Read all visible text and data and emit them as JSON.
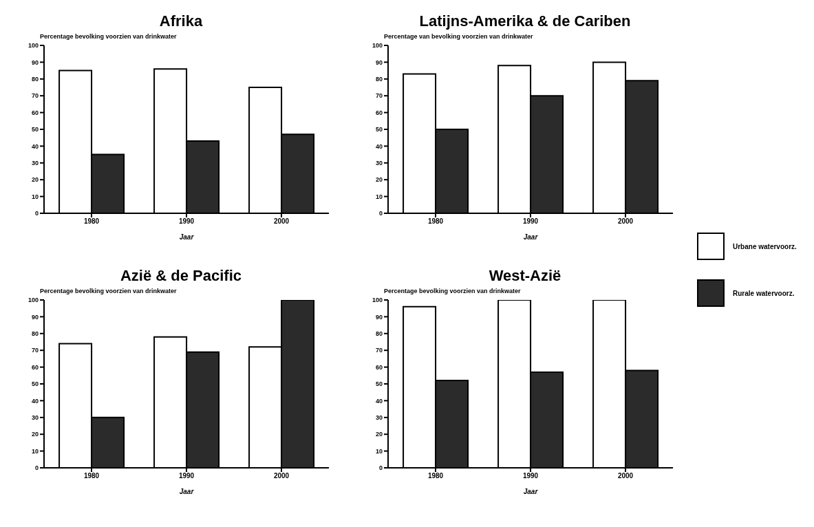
{
  "chart_data": [
    {
      "type": "bar",
      "title": "Afrika",
      "ylabel": "Percentage bevolking voorzien van drinkwater",
      "xlabel": "Jaar",
      "categories": [
        "1980",
        "1990",
        "2000"
      ],
      "ylim": [
        0,
        100
      ],
      "yticks": [
        0,
        10,
        20,
        30,
        40,
        50,
        60,
        70,
        80,
        90,
        100
      ],
      "legend": false,
      "series": [
        {
          "color": "#ffffff",
          "values": [
            85,
            86,
            75
          ]
        },
        {
          "color": "#2b2b2b",
          "values": [
            35,
            43,
            47
          ]
        }
      ]
    },
    {
      "type": "bar",
      "title": "Latijns-Amerika & de Cariben",
      "ylabel": "Percentage van bevolking voorzien van drinkwater",
      "xlabel": "Jaar",
      "categories": [
        "1980",
        "1990",
        "2000"
      ],
      "ylim": [
        0,
        100
      ],
      "yticks": [
        0,
        10,
        20,
        30,
        40,
        50,
        60,
        70,
        80,
        90,
        100
      ],
      "legend": "right",
      "series": [
        {
          "name": "Urbane watervoorz.",
          "color": "#ffffff",
          "values": [
            83,
            88,
            90
          ]
        },
        {
          "name": "Rurale watervoorz.",
          "color": "#2b2b2b",
          "values": [
            50,
            70,
            79
          ]
        }
      ]
    },
    {
      "type": "bar",
      "title": "Azië & de Pacific",
      "ylabel": "Percentage bevolking voorzien van drinkwater",
      "xlabel": "Jaar",
      "categories": [
        "1980",
        "1990",
        "2000"
      ],
      "ylim": [
        0,
        100
      ],
      "yticks": [
        0,
        10,
        20,
        30,
        40,
        50,
        60,
        70,
        80,
        90,
        100
      ],
      "legend": false,
      "series": [
        {
          "color": "#ffffff",
          "values": [
            74,
            78,
            72
          ]
        },
        {
          "color": "#2b2b2b",
          "values": [
            30,
            69,
            100
          ]
        }
      ]
    },
    {
      "type": "bar",
      "title": "West-Azië",
      "ylabel": "Percentage bevolking voorzien van drinkwater",
      "xlabel": "Jaar",
      "categories": [
        "1980",
        "1990",
        "2000"
      ],
      "ylim": [
        0,
        100
      ],
      "yticks": [
        0,
        10,
        20,
        30,
        40,
        50,
        60,
        70,
        80,
        90,
        100
      ],
      "legend": false,
      "series": [
        {
          "color": "#ffffff",
          "values": [
            96,
            100,
            100
          ]
        },
        {
          "color": "#2b2b2b",
          "values": [
            52,
            57,
            58
          ]
        }
      ]
    }
  ]
}
